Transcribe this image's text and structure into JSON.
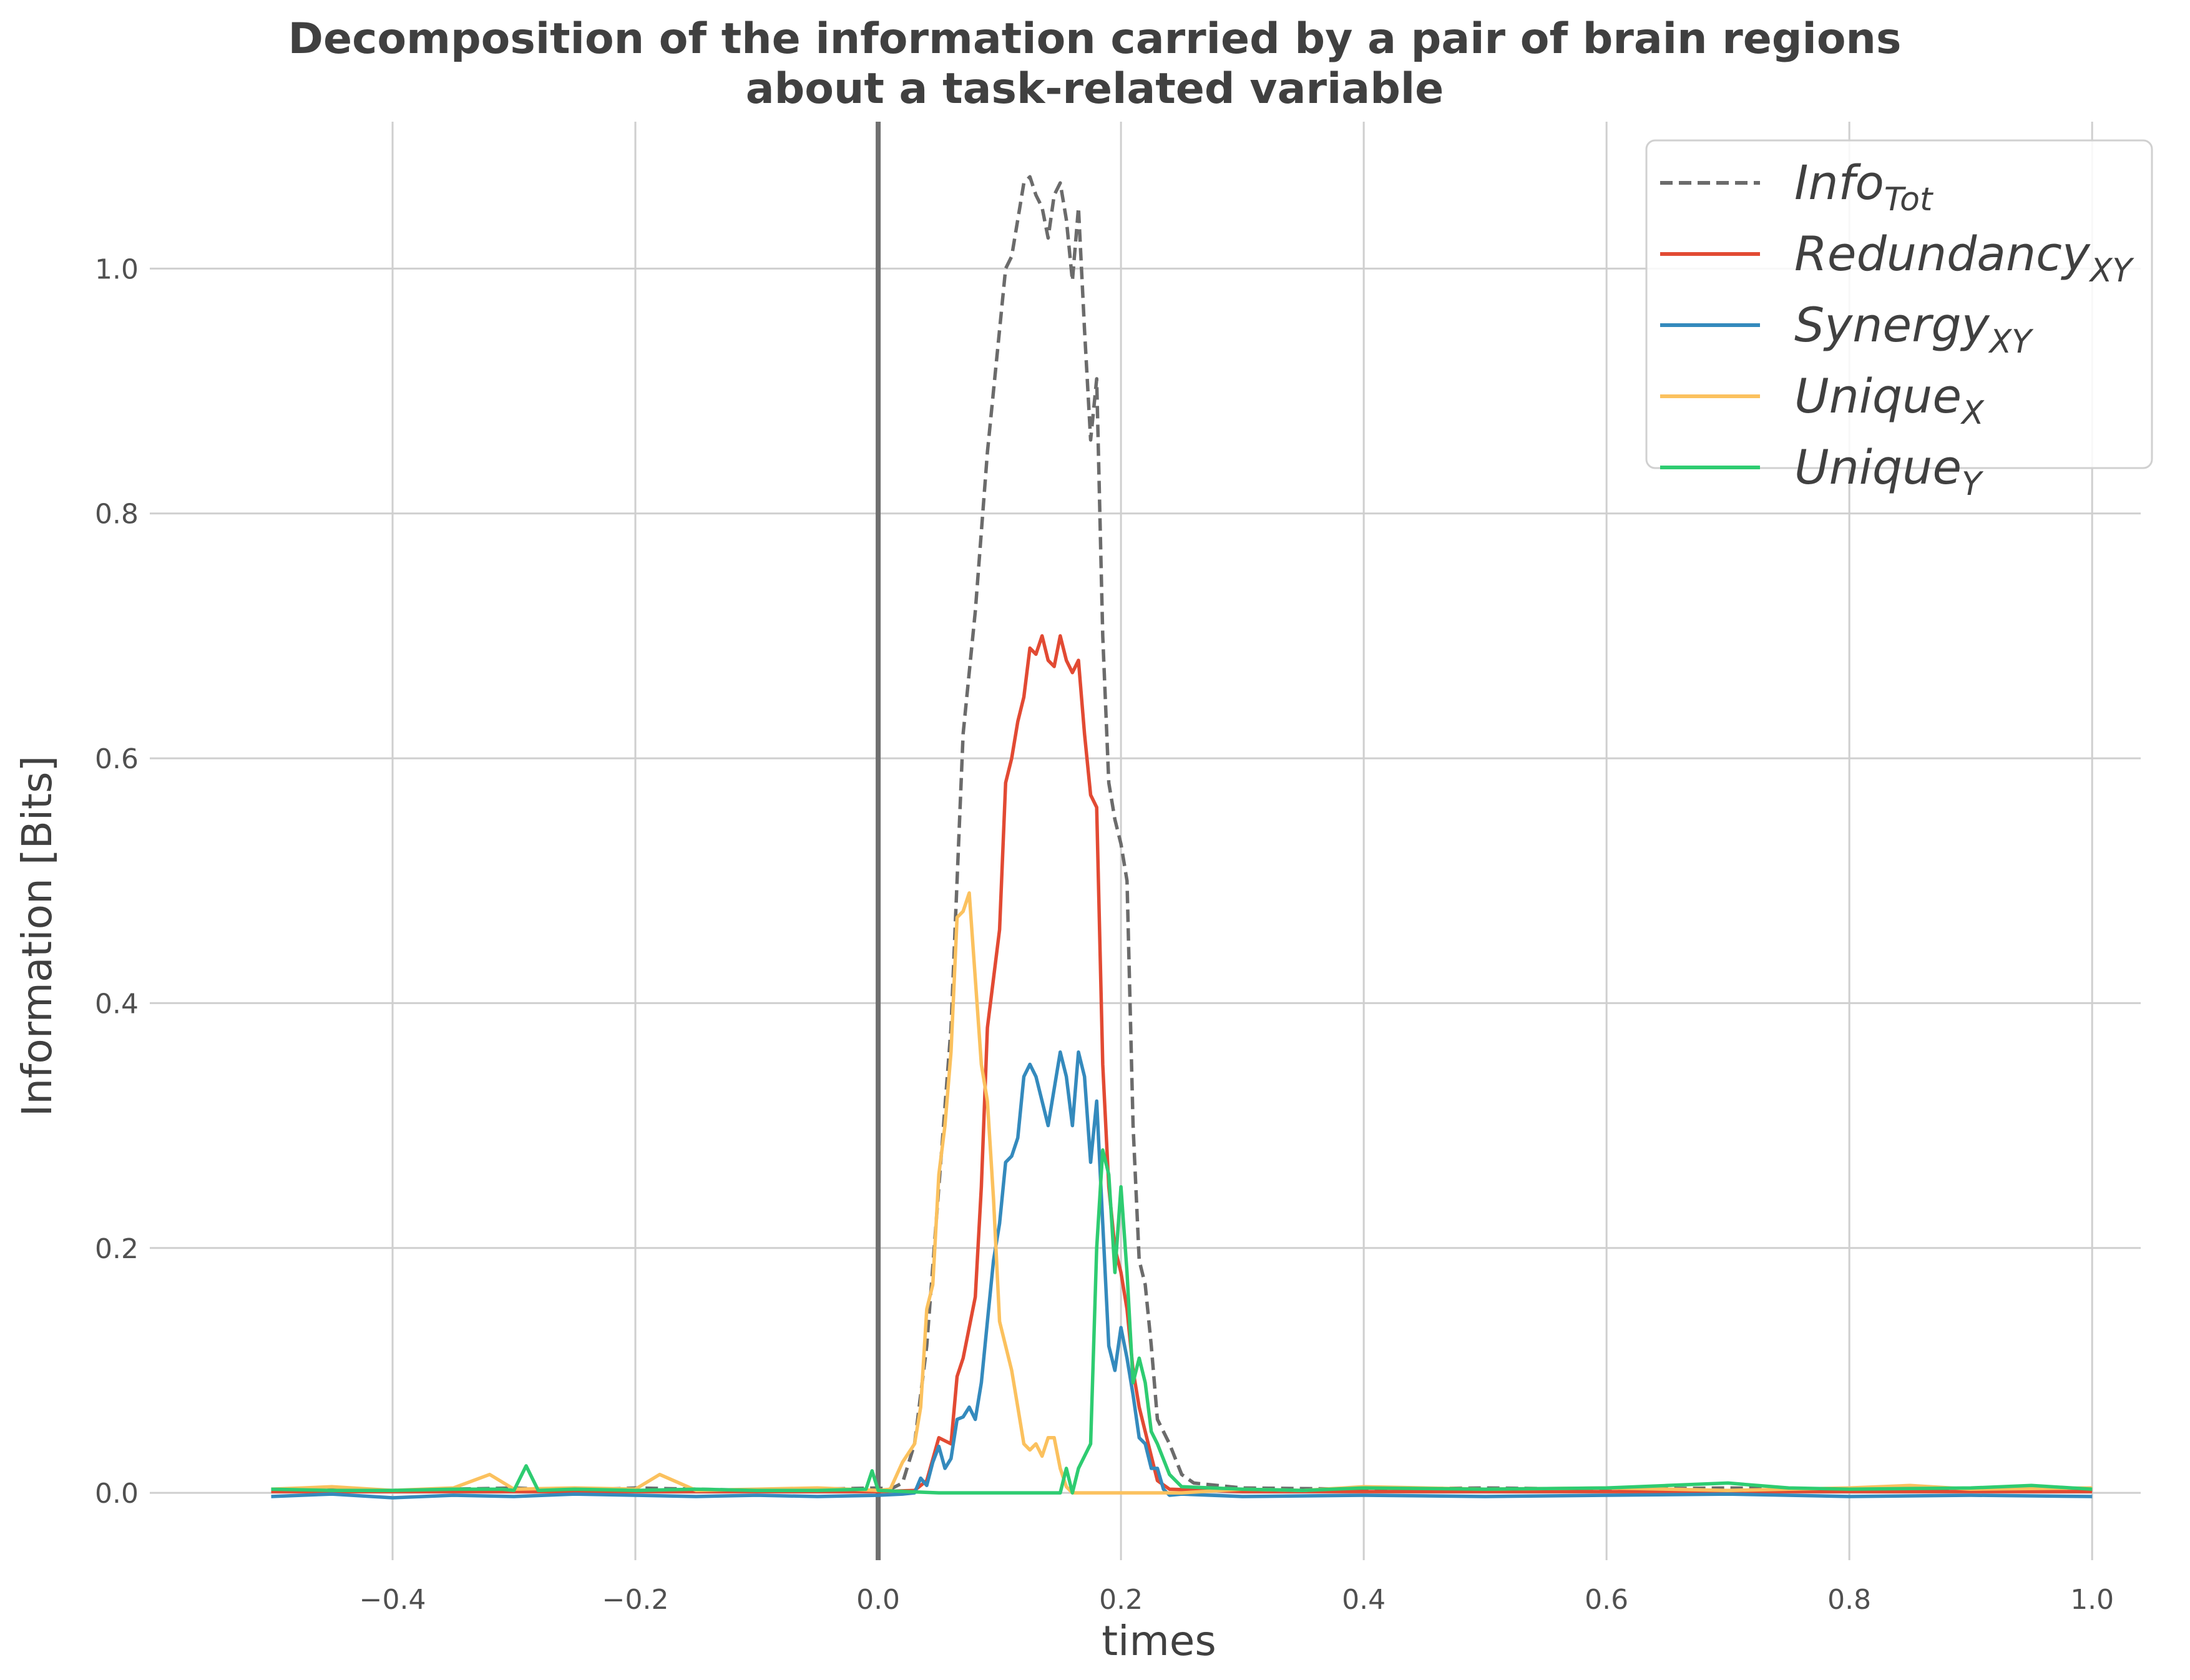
{
  "chart_data": {
    "type": "line",
    "title_line1": "Decomposition of the information carried by a pair of brain regions",
    "title_line2": "about a task-related variable",
    "xlabel": "times",
    "ylabel": "Information [Bits]",
    "xlim": [
      -0.6,
      1.04
    ],
    "ylim": [
      -0.055,
      1.12
    ],
    "xticks": [
      -0.4,
      -0.2,
      0.0,
      0.2,
      0.4,
      0.6,
      0.8,
      1.0
    ],
    "xtick_labels": [
      "−0.4",
      "−0.2",
      "0.0",
      "0.2",
      "0.4",
      "0.6",
      "0.8",
      "1.0"
    ],
    "yticks": [
      0.0,
      0.2,
      0.4,
      0.6,
      0.8,
      1.0
    ],
    "ytick_labels": [
      "0.0",
      "0.2",
      "0.4",
      "0.6",
      "0.8",
      "1.0"
    ],
    "grid": true,
    "legend_position": "top-right",
    "stimulus_onset_x": 0.0,
    "series": [
      {
        "name": "Info",
        "subscript": "Tot",
        "color": "#6b6b6b",
        "dash": "dashed",
        "points": [
          [
            -0.5,
            0.002
          ],
          [
            -0.45,
            0.003
          ],
          [
            -0.4,
            0.002
          ],
          [
            -0.35,
            0.003
          ],
          [
            -0.3,
            0.004
          ],
          [
            -0.25,
            0.002
          ],
          [
            -0.2,
            0.004
          ],
          [
            -0.15,
            0.003
          ],
          [
            -0.1,
            0.002
          ],
          [
            -0.05,
            0.003
          ],
          [
            0.0,
            0.004
          ],
          [
            0.01,
            0.003
          ],
          [
            0.02,
            0.008
          ],
          [
            0.03,
            0.04
          ],
          [
            0.04,
            0.12
          ],
          [
            0.05,
            0.25
          ],
          [
            0.06,
            0.38
          ],
          [
            0.065,
            0.5
          ],
          [
            0.07,
            0.62
          ],
          [
            0.08,
            0.72
          ],
          [
            0.09,
            0.85
          ],
          [
            0.1,
            0.95
          ],
          [
            0.105,
            1.0
          ],
          [
            0.11,
            1.01
          ],
          [
            0.115,
            1.04
          ],
          [
            0.12,
            1.07
          ],
          [
            0.125,
            1.075
          ],
          [
            0.13,
            1.06
          ],
          [
            0.135,
            1.05
          ],
          [
            0.14,
            1.025
          ],
          [
            0.145,
            1.06
          ],
          [
            0.15,
            1.07
          ],
          [
            0.155,
            1.04
          ],
          [
            0.16,
            0.99
          ],
          [
            0.165,
            1.05
          ],
          [
            0.17,
            0.95
          ],
          [
            0.175,
            0.86
          ],
          [
            0.18,
            0.91
          ],
          [
            0.185,
            0.7
          ],
          [
            0.19,
            0.58
          ],
          [
            0.195,
            0.55
          ],
          [
            0.2,
            0.53
          ],
          [
            0.205,
            0.5
          ],
          [
            0.21,
            0.3
          ],
          [
            0.215,
            0.19
          ],
          [
            0.22,
            0.17
          ],
          [
            0.225,
            0.12
          ],
          [
            0.23,
            0.06
          ],
          [
            0.24,
            0.04
          ],
          [
            0.25,
            0.015
          ],
          [
            0.26,
            0.008
          ],
          [
            0.3,
            0.004
          ],
          [
            0.4,
            0.003
          ],
          [
            0.5,
            0.004
          ],
          [
            0.6,
            0.003
          ],
          [
            0.7,
            0.004
          ],
          [
            0.8,
            0.003
          ],
          [
            0.9,
            0.002
          ],
          [
            1.0,
            0.003
          ]
        ]
      },
      {
        "name": "Redundancy",
        "subscript": "XY",
        "color": "#e24a33",
        "dash": "solid",
        "points": [
          [
            -0.5,
            0.001
          ],
          [
            -0.4,
            0.001
          ],
          [
            -0.3,
            0.001
          ],
          [
            -0.2,
            0.001
          ],
          [
            -0.1,
            0.001
          ],
          [
            0.0,
            0.001
          ],
          [
            0.03,
            0.002
          ],
          [
            0.04,
            0.01
          ],
          [
            0.05,
            0.045
          ],
          [
            0.06,
            0.04
          ],
          [
            0.065,
            0.095
          ],
          [
            0.07,
            0.11
          ],
          [
            0.08,
            0.16
          ],
          [
            0.085,
            0.25
          ],
          [
            0.09,
            0.38
          ],
          [
            0.1,
            0.46
          ],
          [
            0.105,
            0.58
          ],
          [
            0.11,
            0.6
          ],
          [
            0.115,
            0.63
          ],
          [
            0.12,
            0.65
          ],
          [
            0.125,
            0.69
          ],
          [
            0.13,
            0.685
          ],
          [
            0.135,
            0.7
          ],
          [
            0.14,
            0.68
          ],
          [
            0.145,
            0.675
          ],
          [
            0.15,
            0.7
          ],
          [
            0.155,
            0.68
          ],
          [
            0.16,
            0.67
          ],
          [
            0.165,
            0.68
          ],
          [
            0.17,
            0.62
          ],
          [
            0.175,
            0.57
          ],
          [
            0.18,
            0.56
          ],
          [
            0.185,
            0.35
          ],
          [
            0.19,
            0.25
          ],
          [
            0.195,
            0.2
          ],
          [
            0.2,
            0.18
          ],
          [
            0.205,
            0.15
          ],
          [
            0.21,
            0.1
          ],
          [
            0.215,
            0.07
          ],
          [
            0.22,
            0.05
          ],
          [
            0.225,
            0.03
          ],
          [
            0.23,
            0.01
          ],
          [
            0.24,
            0.003
          ],
          [
            0.3,
            0.001
          ],
          [
            0.4,
            0.001
          ],
          [
            0.5,
            0.001
          ],
          [
            0.6,
            0.001
          ],
          [
            0.7,
            0.001
          ],
          [
            0.8,
            0.001
          ],
          [
            0.9,
            0.001
          ],
          [
            1.0,
            0.001
          ]
        ]
      },
      {
        "name": "Synergy",
        "subscript": "XY",
        "color": "#348abd",
        "dash": "solid",
        "points": [
          [
            -0.5,
            -0.003
          ],
          [
            -0.45,
            -0.001
          ],
          [
            -0.4,
            -0.004
          ],
          [
            -0.35,
            -0.002
          ],
          [
            -0.3,
            -0.003
          ],
          [
            -0.25,
            -0.001
          ],
          [
            -0.2,
            -0.002
          ],
          [
            -0.15,
            -0.003
          ],
          [
            -0.1,
            -0.002
          ],
          [
            -0.05,
            -0.003
          ],
          [
            0.0,
            -0.002
          ],
          [
            0.02,
            -0.001
          ],
          [
            0.03,
            0.0
          ],
          [
            0.035,
            0.012
          ],
          [
            0.04,
            0.006
          ],
          [
            0.045,
            0.025
          ],
          [
            0.05,
            0.038
          ],
          [
            0.055,
            0.02
          ],
          [
            0.06,
            0.028
          ],
          [
            0.065,
            0.06
          ],
          [
            0.07,
            0.062
          ],
          [
            0.075,
            0.07
          ],
          [
            0.08,
            0.06
          ],
          [
            0.085,
            0.09
          ],
          [
            0.09,
            0.14
          ],
          [
            0.095,
            0.19
          ],
          [
            0.1,
            0.22
          ],
          [
            0.105,
            0.27
          ],
          [
            0.11,
            0.275
          ],
          [
            0.115,
            0.29
          ],
          [
            0.12,
            0.34
          ],
          [
            0.125,
            0.35
          ],
          [
            0.13,
            0.34
          ],
          [
            0.135,
            0.32
          ],
          [
            0.14,
            0.3
          ],
          [
            0.145,
            0.33
          ],
          [
            0.15,
            0.36
          ],
          [
            0.155,
            0.34
          ],
          [
            0.16,
            0.3
          ],
          [
            0.165,
            0.36
          ],
          [
            0.17,
            0.34
          ],
          [
            0.175,
            0.27
          ],
          [
            0.18,
            0.32
          ],
          [
            0.185,
            0.22
          ],
          [
            0.19,
            0.12
          ],
          [
            0.195,
            0.1
          ],
          [
            0.2,
            0.135
          ],
          [
            0.205,
            0.11
          ],
          [
            0.21,
            0.08
          ],
          [
            0.215,
            0.045
          ],
          [
            0.22,
            0.04
          ],
          [
            0.225,
            0.02
          ],
          [
            0.23,
            0.02
          ],
          [
            0.235,
            0.003
          ],
          [
            0.24,
            -0.002
          ],
          [
            0.25,
            -0.001
          ],
          [
            0.3,
            -0.003
          ],
          [
            0.4,
            -0.002
          ],
          [
            0.5,
            -0.003
          ],
          [
            0.6,
            -0.002
          ],
          [
            0.7,
            -0.001
          ],
          [
            0.8,
            -0.003
          ],
          [
            0.9,
            -0.002
          ],
          [
            1.0,
            -0.003
          ]
        ]
      },
      {
        "name": "Unique",
        "subscript": "X",
        "color": "#fbc15e",
        "dash": "solid",
        "points": [
          [
            -0.5,
            0.003
          ],
          [
            -0.45,
            0.005
          ],
          [
            -0.4,
            0.002
          ],
          [
            -0.35,
            0.004
          ],
          [
            -0.32,
            0.015
          ],
          [
            -0.3,
            0.003
          ],
          [
            -0.25,
            0.004
          ],
          [
            -0.2,
            0.003
          ],
          [
            -0.18,
            0.015
          ],
          [
            -0.15,
            0.002
          ],
          [
            -0.1,
            0.003
          ],
          [
            -0.05,
            0.004
          ],
          [
            0.0,
            0.002
          ],
          [
            0.01,
            0.003
          ],
          [
            0.02,
            0.025
          ],
          [
            0.03,
            0.04
          ],
          [
            0.035,
            0.07
          ],
          [
            0.04,
            0.15
          ],
          [
            0.045,
            0.17
          ],
          [
            0.05,
            0.26
          ],
          [
            0.055,
            0.3
          ],
          [
            0.06,
            0.36
          ],
          [
            0.065,
            0.47
          ],
          [
            0.07,
            0.475
          ],
          [
            0.075,
            0.49
          ],
          [
            0.08,
            0.42
          ],
          [
            0.085,
            0.35
          ],
          [
            0.09,
            0.32
          ],
          [
            0.095,
            0.24
          ],
          [
            0.1,
            0.14
          ],
          [
            0.105,
            0.12
          ],
          [
            0.11,
            0.1
          ],
          [
            0.115,
            0.07
          ],
          [
            0.12,
            0.04
          ],
          [
            0.125,
            0.035
          ],
          [
            0.13,
            0.04
          ],
          [
            0.135,
            0.03
          ],
          [
            0.14,
            0.045
          ],
          [
            0.145,
            0.045
          ],
          [
            0.15,
            0.02
          ],
          [
            0.155,
            0.005
          ],
          [
            0.16,
            0.0
          ],
          [
            0.2,
            0.0
          ],
          [
            0.25,
            0.0
          ],
          [
            0.3,
            0.003
          ],
          [
            0.35,
            0.002
          ],
          [
            0.4,
            0.005
          ],
          [
            0.5,
            0.003
          ],
          [
            0.6,
            0.004
          ],
          [
            0.7,
            0.002
          ],
          [
            0.8,
            0.004
          ],
          [
            0.85,
            0.006
          ],
          [
            0.9,
            0.003
          ],
          [
            1.0,
            0.004
          ]
        ]
      },
      {
        "name": "Unique",
        "subscript": "Y",
        "color": "#2ecc71",
        "dash": "solid",
        "points": [
          [
            -0.5,
            0.003
          ],
          [
            -0.45,
            0.002
          ],
          [
            -0.4,
            0.002
          ],
          [
            -0.35,
            0.003
          ],
          [
            -0.31,
            0.003
          ],
          [
            -0.3,
            0.002
          ],
          [
            -0.29,
            0.022
          ],
          [
            -0.28,
            0.002
          ],
          [
            -0.25,
            0.003
          ],
          [
            -0.2,
            0.002
          ],
          [
            -0.15,
            0.003
          ],
          [
            -0.1,
            0.002
          ],
          [
            -0.05,
            0.002
          ],
          [
            -0.01,
            0.003
          ],
          [
            -0.005,
            0.018
          ],
          [
            0.0,
            0.002
          ],
          [
            0.05,
            0.0
          ],
          [
            0.1,
            0.0
          ],
          [
            0.15,
            0.0
          ],
          [
            0.155,
            0.02
          ],
          [
            0.16,
            0.0
          ],
          [
            0.165,
            0.02
          ],
          [
            0.17,
            0.03
          ],
          [
            0.175,
            0.04
          ],
          [
            0.18,
            0.2
          ],
          [
            0.185,
            0.28
          ],
          [
            0.19,
            0.26
          ],
          [
            0.195,
            0.18
          ],
          [
            0.2,
            0.25
          ],
          [
            0.205,
            0.18
          ],
          [
            0.21,
            0.09
          ],
          [
            0.215,
            0.11
          ],
          [
            0.22,
            0.09
          ],
          [
            0.225,
            0.05
          ],
          [
            0.23,
            0.04
          ],
          [
            0.24,
            0.015
          ],
          [
            0.25,
            0.005
          ],
          [
            0.3,
            0.003
          ],
          [
            0.35,
            0.002
          ],
          [
            0.4,
            0.004
          ],
          [
            0.5,
            0.003
          ],
          [
            0.6,
            0.004
          ],
          [
            0.65,
            0.006
          ],
          [
            0.7,
            0.008
          ],
          [
            0.75,
            0.004
          ],
          [
            0.8,
            0.003
          ],
          [
            0.9,
            0.004
          ],
          [
            0.95,
            0.006
          ],
          [
            1.0,
            0.003
          ]
        ]
      }
    ]
  }
}
